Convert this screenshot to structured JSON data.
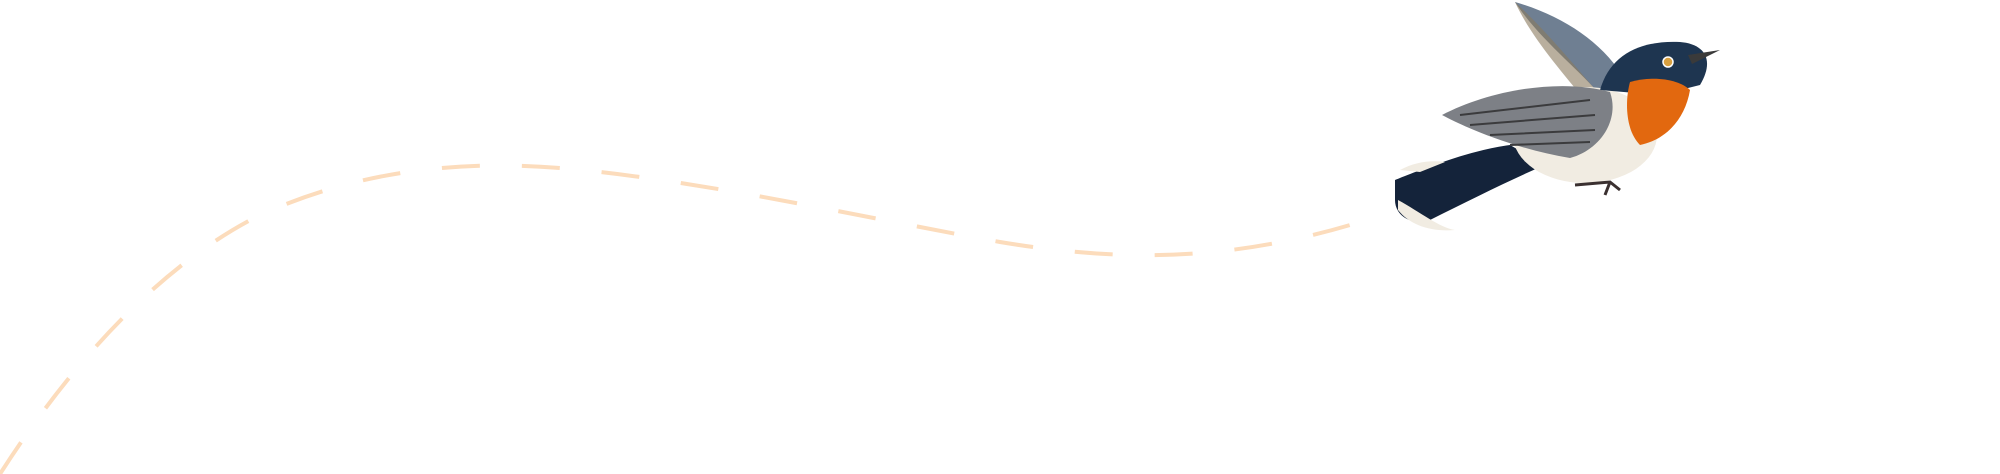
{
  "decoration": {
    "flight_path": {
      "style": "dashed",
      "color": "#fcdcbc"
    },
    "bird": {
      "icon": "bird-illustration-icon",
      "colors": {
        "head": "#1e3550",
        "throat": "#e2680f",
        "belly": "#f1ece2",
        "wing": "#7d8086",
        "tail": "#14233a"
      }
    }
  }
}
